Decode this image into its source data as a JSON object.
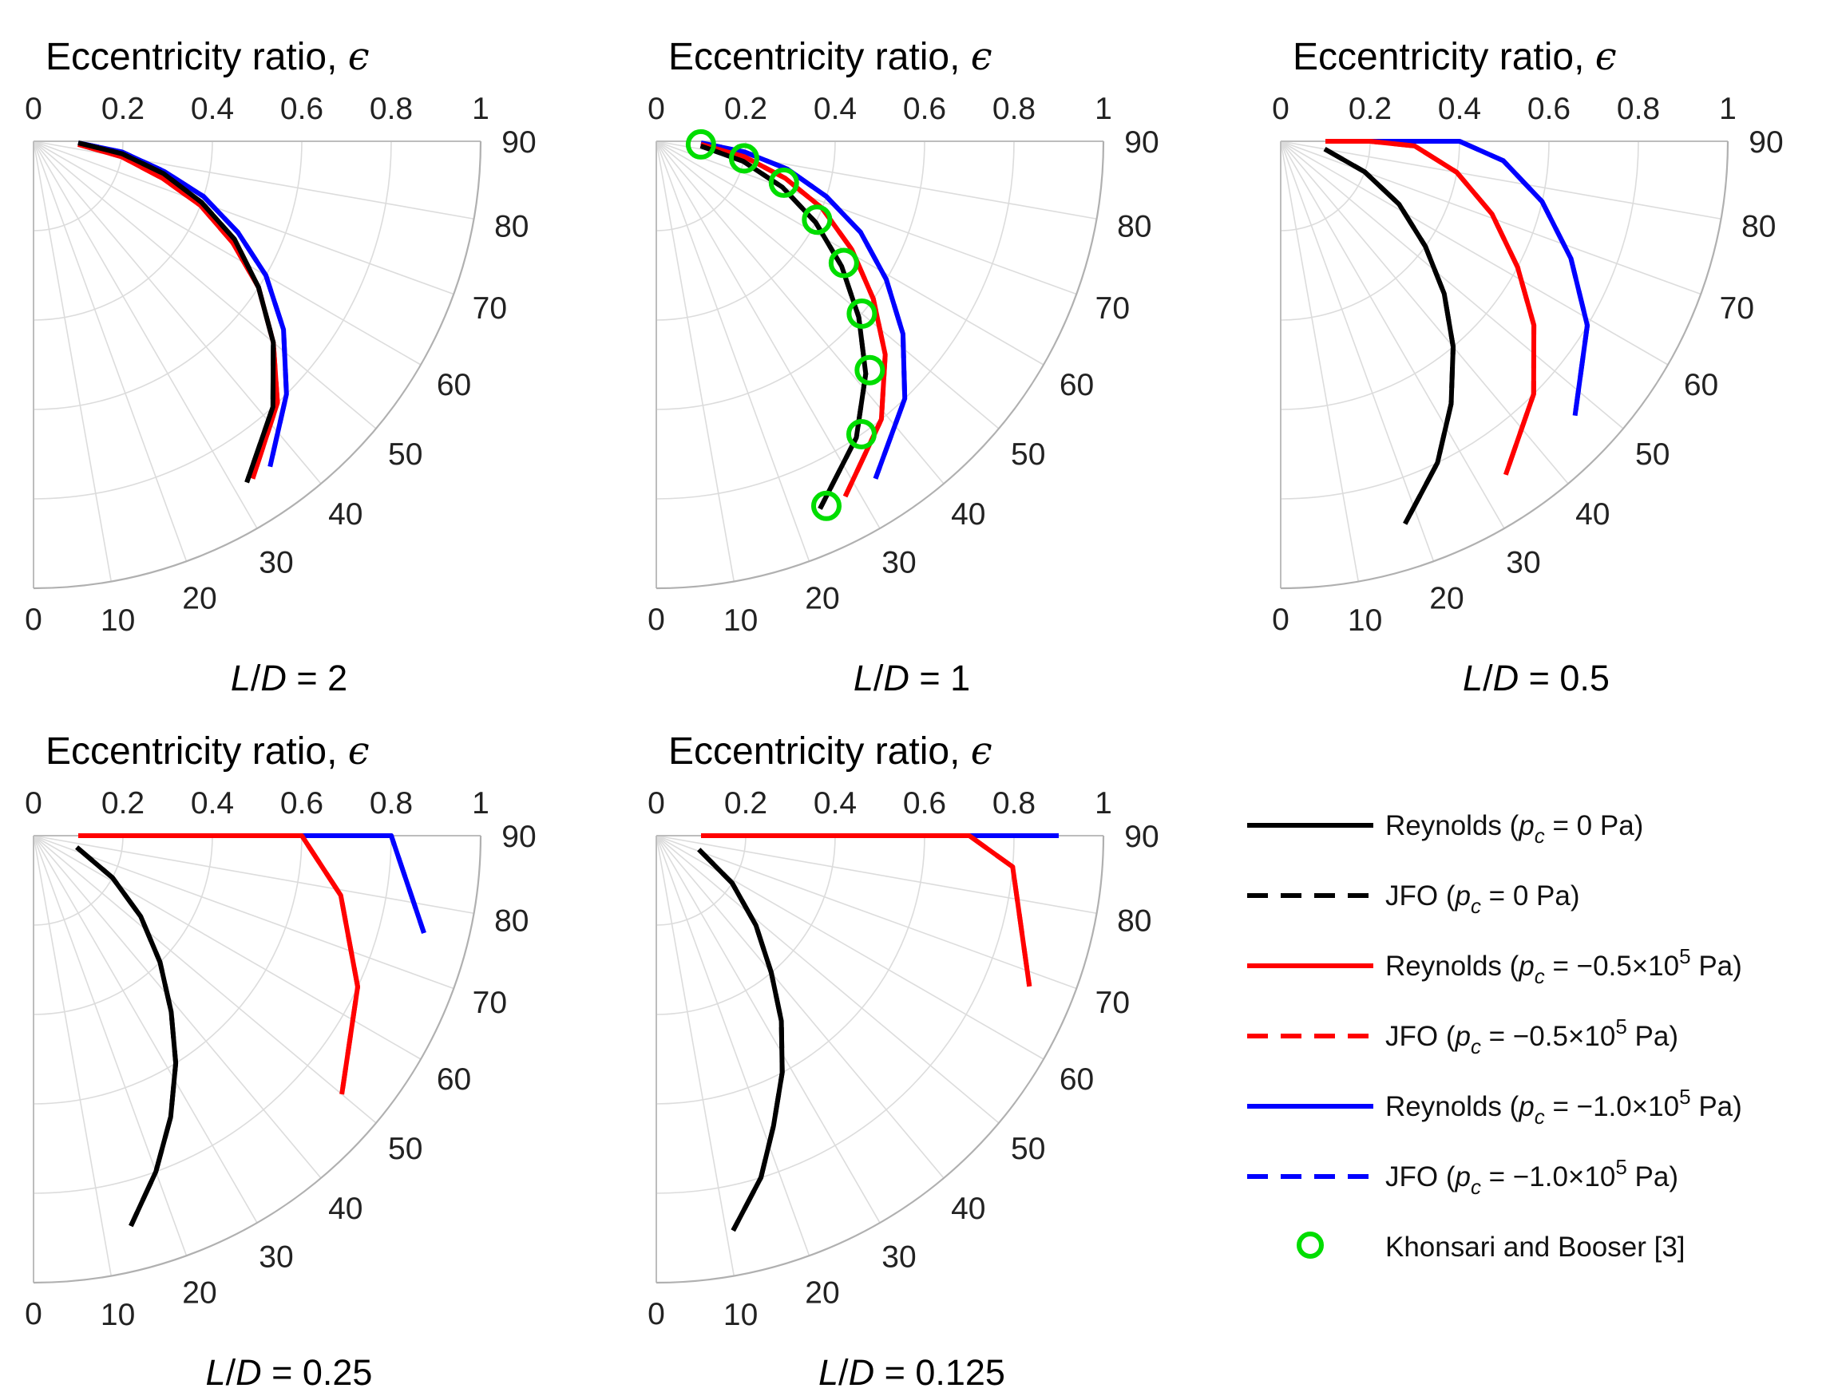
{
  "chart_data": {
    "type": "polar-line",
    "angle_unit": "deg",
    "theta_range": [
      0,
      90
    ],
    "radius_range": [
      0,
      1
    ],
    "radius_label": "Eccentricity ratio, ",
    "radius_symbol": "ϵ",
    "radius_ticks": [
      "0",
      "0.2",
      "0.4",
      "0.6",
      "0.8",
      "1"
    ],
    "angle_ticks": [
      "0",
      "10",
      "20",
      "30",
      "40",
      "50",
      "60",
      "70",
      "80",
      "90"
    ],
    "series_styles": [
      {
        "name": "Reynolds (p_c = 0 Pa)",
        "color": "#000000",
        "dash": "solid"
      },
      {
        "name": "JFO (p_c = 0 Pa)",
        "color": "#000000",
        "dash": "dashed"
      },
      {
        "name": "Reynolds (p_c = −0.5×10^5 Pa)",
        "color": "#ff0000",
        "dash": "solid"
      },
      {
        "name": "JFO (p_c = −0.5×10^5 Pa)",
        "color": "#ff0000",
        "dash": "dashed"
      },
      {
        "name": "Reynolds (p_c = −1.0×10^5 Pa)",
        "color": "#0000ff",
        "dash": "solid"
      },
      {
        "name": "JFO (p_c = −1.0×10^5 Pa)",
        "color": "#0000ff",
        "dash": "dashed"
      },
      {
        "name": "Khonsari and Booser [3]",
        "color": "#00dd00",
        "marker": "circle"
      }
    ],
    "eccentricity": [
      0.1,
      0.2,
      0.3,
      0.4,
      0.5,
      0.6,
      0.7,
      0.8,
      0.9
    ],
    "panels": [
      {
        "label_pre": "L",
        "label_mid": "D",
        "label_post": " = 2",
        "series": [
          {
            "angles": [
              88,
              82,
              76,
              70,
              64,
              57,
              50,
              42,
              32
            ]
          },
          {
            "angles": [
              88,
              82,
              76,
              70,
              64,
              57,
              50,
              42,
              32
            ]
          },
          {
            "angles": [
              86,
              80,
              74,
              69,
              63,
              57,
              50,
              43,
              33
            ]
          },
          {
            "angles": [
              86,
              80,
              74,
              69,
              63,
              57,
              50,
              43,
              33
            ]
          },
          {
            "angles": [
              88,
              83,
              77,
              72,
              66,
              60,
              53,
              45,
              36
            ]
          },
          {
            "angles": [
              88,
              83,
              77,
              72,
              66,
              60,
              53,
              45,
              36
            ]
          }
        ]
      },
      {
        "label_pre": "L",
        "label_mid": "D",
        "label_post": " = 1",
        "series": [
          {
            "angles": [
              84,
              77,
              70,
              63,
              56,
              49,
              42,
              34,
              24
            ]
          },
          {
            "angles": [
              84,
              77,
              70,
              63,
              56,
              49,
              42,
              34,
              24
            ]
          },
          {
            "angles": [
              86,
              80,
              74,
              68,
              61,
              54,
              47,
              39,
              28
            ]
          },
          {
            "angles": [
              86,
              80,
              74,
              68,
              61,
              54,
              47,
              39,
              28
            ]
          },
          {
            "angles": [
              88,
              83,
              78,
              72,
              66,
              59,
              52,
              44,
              33
            ]
          },
          {
            "angles": [
              88,
              83,
              78,
              72,
              66,
              59,
              52,
              44,
              33
            ]
          }
        ],
        "reference": {
          "angles": [
            86,
            79,
            72,
            64,
            57,
            50,
            43,
            35,
            25
          ]
        }
      },
      {
        "label_pre": "L",
        "label_mid": "D",
        "label_post": " = 0.5",
        "series": [
          {
            "angles": [
              80,
              70,
              62,
              54,
              47,
              40,
              33,
              26,
              18
            ]
          },
          {
            "angles": [
              80,
              70,
              62,
              54,
              47,
              40,
              33,
              26,
              18
            ]
          },
          {
            "angles": [
              90,
              90,
              88,
              80,
              71,
              62,
              54,
              45,
              34
            ]
          },
          {
            "angles": [
              90,
              90,
              88,
              80,
              71,
              62,
              54,
              45,
              34
            ]
          },
          {
            "angles": [
              90,
              90,
              90,
              90,
              85,
              77,
              68,
              59,
              47
            ]
          },
          {
            "angles": [
              90,
              90,
              90,
              90,
              85,
              77,
              68,
              59,
              47
            ]
          }
        ]
      },
      {
        "label_pre": "L",
        "label_mid": "D",
        "label_post": " = 0.25",
        "series": [
          {
            "angles": [
              75,
              62,
              53,
              45,
              38,
              32,
              26,
              20,
              14
            ]
          },
          {
            "angles": [
              75,
              62,
              53,
              45,
              38,
              32,
              26,
              20,
              14
            ]
          },
          {
            "angles": [
              90,
              90,
              90,
              90,
              90,
              90,
              79,
              65,
              50
            ]
          },
          {
            "angles": [
              90,
              90,
              90,
              90,
              90,
              90,
              79,
              65,
              50
            ]
          },
          {
            "angles": [
              90,
              90,
              90,
              90,
              90,
              90,
              90,
              90,
              76
            ]
          },
          {
            "angles": [
              90,
              90,
              90,
              90,
              90,
              90,
              90,
              90,
              76
            ]
          }
        ]
      },
      {
        "label_pre": "L",
        "label_mid": "D",
        "label_post": " = 0.125",
        "series": [
          {
            "angles": [
              72,
              58,
              48,
              40,
              34,
              28,
              22,
              17,
              11
            ]
          },
          {
            "angles": [
              72,
              58,
              48,
              40,
              34,
              28,
              22,
              17,
              11
            ]
          },
          {
            "angles": [
              90,
              90,
              90,
              90,
              90,
              90,
              90,
              85,
              68
            ]
          },
          {
            "angles": [
              90,
              90,
              90,
              90,
              90,
              90,
              90,
              85,
              68
            ]
          },
          {
            "angles": [
              90,
              90,
              90,
              90,
              90,
              90,
              90,
              90,
              90
            ]
          },
          {
            "angles": [
              90,
              90,
              90,
              90,
              90,
              90,
              90,
              90,
              90
            ]
          }
        ]
      }
    ]
  },
  "legend": {
    "entries": [
      {
        "prefix": "Reynolds (",
        "var": "p",
        "sub": "c",
        "mid": " = 0 Pa",
        "sup": "",
        "suffix": ")"
      },
      {
        "prefix": "JFO (",
        "var": "p",
        "sub": "c",
        "mid": " = 0 Pa",
        "sup": "",
        "suffix": ")"
      },
      {
        "prefix": "Reynolds (",
        "var": "p",
        "sub": "c",
        "mid": " = −0.5×10",
        "sup": "5",
        "suffix": " Pa)"
      },
      {
        "prefix": "JFO (",
        "var": "p",
        "sub": "c",
        "mid": " = −0.5×10",
        "sup": "5",
        "suffix": " Pa)"
      },
      {
        "prefix": "Reynolds (",
        "var": "p",
        "sub": "c",
        "mid": " = −1.0×10",
        "sup": "5",
        "suffix": " Pa)"
      },
      {
        "prefix": "JFO (",
        "var": "p",
        "sub": "c",
        "mid": " = −1.0×10",
        "sup": "5",
        "suffix": " Pa)"
      },
      {
        "prefix": "Khonsari and Booser [3]",
        "var": "",
        "sub": "",
        "mid": "",
        "sup": "",
        "suffix": ""
      }
    ]
  }
}
